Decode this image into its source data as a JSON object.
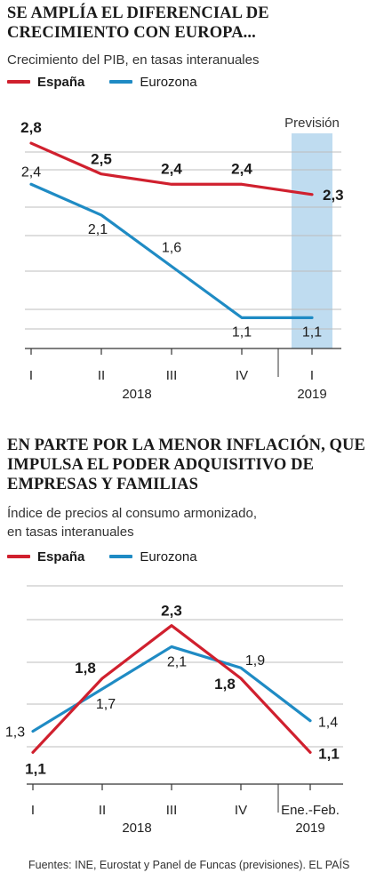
{
  "footer": "Fuentes: INE, Eurostat y Panel de Funcas (previsiones).  EL PAÍS",
  "colors": {
    "spain": "#d0202e",
    "eurozone": "#1f8bc4",
    "forecast": "#bfdcf0",
    "grid": "#bdbdbd",
    "axis": "#333333"
  },
  "charts": [
    {
      "headline": [
        "SE AMPLÍA EL DIFERENCIAL DE",
        "CRECIMIENTO CON EUROPA..."
      ],
      "subtitle": [
        "Crecimiento del PIB, en tasas interanuales"
      ],
      "legend": [
        "España",
        "Eurozona"
      ],
      "forecast_label": "Previsión"
    },
    {
      "headline": [
        "EN PARTE POR LA MENOR INFLACIÓN, QUE",
        "IMPULSA EL PODER ADQUISITIVO DE",
        "EMPRESAS Y FAMILIAS"
      ],
      "subtitle": [
        "Índice de precios al consumo armonizado,",
        "en tasas interanuales"
      ],
      "legend": [
        "España",
        "Eurozona"
      ]
    }
  ],
  "chart_data": [
    {
      "type": "line",
      "categories": [
        "I",
        "II",
        "III",
        "IV",
        "I"
      ],
      "year_labels": [
        "2018",
        "2019"
      ],
      "ylim": [
        0.8,
        3.0
      ],
      "grid": true,
      "forecast_category_index": 4,
      "series": [
        {
          "name": "España",
          "values": [
            2.8,
            2.5,
            2.4,
            2.4,
            2.3
          ],
          "labels": [
            "2,8",
            "2,5",
            "2,4",
            "2,4",
            "2,3"
          ]
        },
        {
          "name": "Eurozona",
          "values": [
            2.4,
            2.1,
            1.6,
            1.1,
            1.1
          ],
          "labels": [
            "2,4",
            "2,1",
            "1,6",
            "1,1",
            "1,1"
          ]
        }
      ]
    },
    {
      "type": "line",
      "categories": [
        "I",
        "II",
        "III",
        "IV",
        "Ene.-Feb."
      ],
      "year_labels": [
        "2018",
        "2019"
      ],
      "ylim": [
        0.8,
        2.6
      ],
      "grid": true,
      "series": [
        {
          "name": "España",
          "values": [
            1.1,
            1.8,
            2.3,
            1.8,
            1.1
          ],
          "labels": [
            "1,1",
            "1,8",
            "2,3",
            "1,8",
            "1,1"
          ]
        },
        {
          "name": "Eurozona",
          "values": [
            1.3,
            1.7,
            2.1,
            1.9,
            1.4
          ],
          "labels": [
            "1,3",
            "1,7",
            "2,1",
            "1,9",
            "1,4"
          ]
        }
      ]
    }
  ]
}
